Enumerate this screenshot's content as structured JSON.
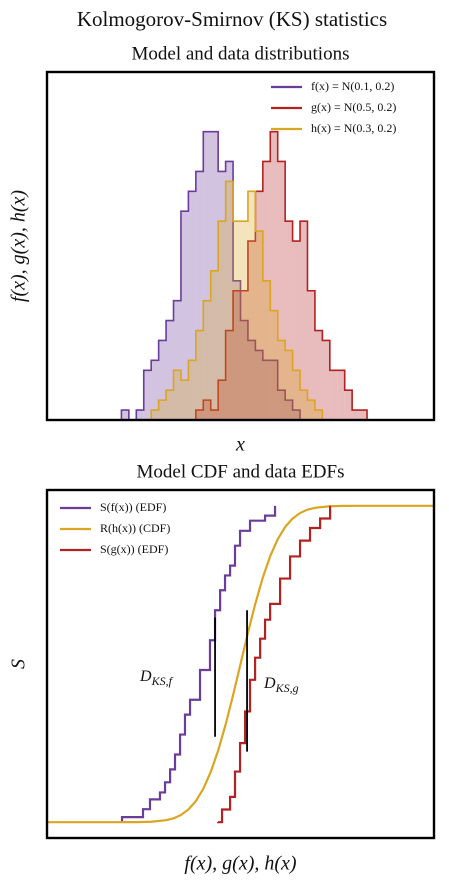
{
  "title": "Kolmogorov-Smirnov (KS) statistics",
  "chart_data": [
    {
      "type": "histogram",
      "title": "Model and data distributions",
      "x_label": "x",
      "y_label": "f(x), g(x), h(x)",
      "xlim": [
        -1,
        1.6
      ],
      "ylim": [
        0,
        3.5
      ],
      "legend": "upper right",
      "bins": [
        -0.5,
        -0.45,
        -0.4,
        -0.35,
        -0.3,
        -0.25,
        -0.2,
        -0.15,
        -0.1,
        -0.05,
        0,
        0.05,
        0.1,
        0.15,
        0.2,
        0.25,
        0.3,
        0.35,
        0.4,
        0.45,
        0.5,
        0.55,
        0.6,
        0.65,
        0.7,
        0.75,
        0.8,
        0.85,
        0.9,
        0.95,
        1,
        1.05,
        1.1,
        1.15
      ],
      "series": [
        {
          "name": "f(x) = N(0.1, 0.2)",
          "color": "#6a3d9a",
          "values": [
            0.1,
            0,
            0.1,
            0.5,
            0.6,
            0.8,
            1.0,
            1.2,
            2.1,
            2.3,
            2.5,
            2.9,
            2.9,
            2.5,
            2.6,
            1.4,
            1.0,
            0.8,
            0.7,
            0.6,
            0.6,
            0.3,
            0.2,
            0.1,
            0,
            0,
            0,
            0,
            0,
            0,
            0,
            0,
            0
          ]
        },
        {
          "name": "g(x) = N(0.5, 0.2)",
          "color": "#b22222",
          "values": [
            0,
            0,
            0,
            0,
            0,
            0,
            0,
            0,
            0,
            0,
            0.1,
            0.2,
            0.1,
            0.4,
            0.9,
            1.3,
            1.3,
            1.8,
            2.3,
            2.6,
            2.9,
            2.6,
            2.0,
            1.8,
            2.0,
            1.3,
            0.9,
            0.8,
            0.5,
            0.5,
            0.3,
            0.1,
            0.1
          ]
        },
        {
          "name": "h(x) = N(0.3, 0.2)",
          "color": "#daa520",
          "values": [
            0,
            0,
            0,
            0,
            0.1,
            0.2,
            0.3,
            0.5,
            0.4,
            0.6,
            0.9,
            1.2,
            1.5,
            2.0,
            2.4,
            2.0,
            2.0,
            2.3,
            1.9,
            1.4,
            1.1,
            0.8,
            0.7,
            0.5,
            0.3,
            0.2,
            0.1,
            0,
            0,
            0,
            0,
            0,
            0
          ]
        }
      ]
    },
    {
      "type": "line",
      "title": "Model CDF and data EDFs",
      "x_label": "f(x), g(x), h(x)",
      "y_label": "S",
      "xlim": [
        -1,
        1.6
      ],
      "ylim": [
        -0.05,
        1.05
      ],
      "legend": "upper left",
      "series": [
        {
          "name": "S(f(x)) (EDF)",
          "color": "#6a3d9a",
          "drawstyle": "steps-post",
          "x": [
            -0.496,
            -0.355,
            -0.308,
            -0.241,
            -0.207,
            -0.173,
            -0.14,
            -0.106,
            -0.073,
            -0.039,
            0.028,
            0.095,
            0.129,
            0.163,
            0.196,
            0.23,
            0.263,
            0.297,
            0.364,
            0.465,
            0.532
          ],
          "values": [
            0.016,
            0.041,
            0.072,
            0.094,
            0.126,
            0.167,
            0.214,
            0.277,
            0.34,
            0.387,
            0.481,
            0.575,
            0.67,
            0.733,
            0.78,
            0.811,
            0.874,
            0.921,
            0.953,
            0.969,
            1.0
          ]
        },
        {
          "name": "R(h(x)) (CDF)",
          "color": "#daa520",
          "drawstyle": "default",
          "x": [
            -1,
            -0.9,
            -0.8,
            -0.7,
            -0.6,
            -0.5,
            -0.4,
            -0.3,
            -0.2,
            -0.15,
            -0.1,
            -0.05,
            0,
            0.05,
            0.1,
            0.15,
            0.2,
            0.25,
            0.3,
            0.35,
            0.4,
            0.45,
            0.5,
            0.55,
            0.6,
            0.65,
            0.7,
            0.75,
            0.8,
            0.9,
            1.0,
            1.1,
            1.2,
            1.3,
            1.4,
            1.5,
            1.6
          ],
          "values": [
            0,
            0,
            0,
            0,
            0,
            0,
            0.0002,
            0.0013,
            0.0062,
            0.0122,
            0.0228,
            0.0401,
            0.0668,
            0.1056,
            0.1587,
            0.2266,
            0.3085,
            0.4013,
            0.5,
            0.5987,
            0.6915,
            0.7734,
            0.8413,
            0.8944,
            0.9332,
            0.9599,
            0.9772,
            0.9878,
            0.9938,
            0.9987,
            0.9998,
            1,
            1,
            1,
            1,
            1,
            1
          ]
        },
        {
          "name": "S(g(x)) (EDF)",
          "color": "#b22222",
          "drawstyle": "steps-post",
          "x": [
            0.149,
            0.176,
            0.23,
            0.263,
            0.297,
            0.331,
            0.364,
            0.398,
            0.432,
            0.465,
            0.499,
            0.566,
            0.633,
            0.7,
            0.767,
            0.835,
            0.902
          ],
          "values": [
            0,
            0.04,
            0.08,
            0.16,
            0.25,
            0.35,
            0.45,
            0.52,
            0.58,
            0.64,
            0.69,
            0.77,
            0.84,
            0.89,
            0.93,
            0.96,
            1.0
          ]
        }
      ],
      "ks_lines": [
        {
          "symbol": "D",
          "subscript": "KS,f",
          "x": 0.129,
          "y": [
            0.27,
            0.647
          ]
        },
        {
          "symbol": "D",
          "subscript": "KS,g",
          "x": 0.344,
          "y": [
            0.223,
            0.67
          ]
        }
      ]
    }
  ]
}
